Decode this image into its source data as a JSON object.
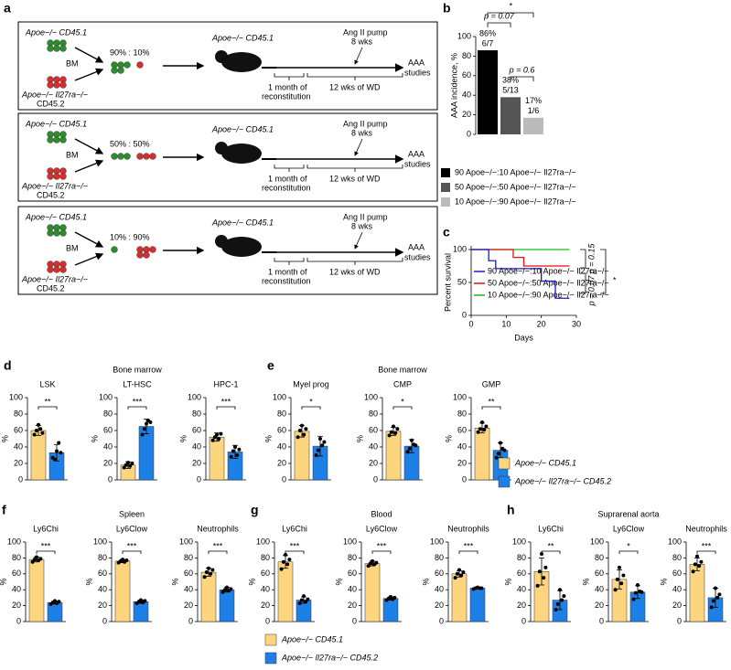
{
  "panel_a": {
    "label": "a",
    "rows": [
      {
        "donor1": "Apoe−/− CD45.1",
        "bm": "BM",
        "donor2": [
          "Apoe−/− Il27ra−/−",
          "CD45.2"
        ],
        "ratio": "90% : 10%",
        "recipient": "Apoe−/− CD45.1",
        "pump": "Ang II pump",
        "duration": "8 wks",
        "outcome": [
          "AAA",
          "studies"
        ],
        "phase1": [
          "1 month of",
          "reconstitution"
        ],
        "phase2": "12 wks of WD"
      },
      {
        "donor1": "Apoe−/− CD45.1",
        "bm": "BM",
        "donor2": [
          "Apoe−/− Il27ra−/−",
          "CD45.2"
        ],
        "ratio": "50% : 50%",
        "recipient": "Apoe−/− CD45.1",
        "pump": "Ang II pump",
        "duration": "8 wks",
        "outcome": [
          "AAA",
          "studies"
        ],
        "phase1": [
          "1 month of",
          "reconstitution"
        ],
        "phase2": "12 wks of WD"
      },
      {
        "donor1": "Apoe−/− CD45.1",
        "bm": "BM",
        "donor2": [
          "Apoe−/− Il27ra−/−",
          "CD45.2"
        ],
        "ratio": "10% : 90%",
        "recipient": "Apoe−/− CD45.1",
        "pump": "Ang II pump",
        "duration": "8 wks",
        "outcome": [
          "AAA",
          "studies"
        ],
        "phase1": [
          "1 month of",
          "reconstitution"
        ],
        "phase2": "12 wks of WD"
      }
    ]
  },
  "legend": {
    "series": [
      {
        "name": "Apoe−/− CD45.1",
        "color": "#fcd57e"
      },
      {
        "name": "Apoe−/− Il27ra−/− CD45.2",
        "color": "#1d80e6"
      }
    ]
  },
  "chart_data": [
    {
      "type": "bar",
      "panel": "b",
      "ylabel": "AAA incidence, %",
      "ylim": [
        0,
        100
      ],
      "yticks": [
        0,
        20,
        40,
        60,
        80,
        100
      ],
      "series": [
        {
          "name": "90 Apoe−/−:10 Apoe−/− Il27ra−/−",
          "color": "#000000",
          "values": [
            86
          ],
          "value_labels": [
            "86%"
          ],
          "counts": [
            "6/7"
          ]
        },
        {
          "name": "50 Apoe−/−:50 Apoe−/− Il27ra−/−",
          "color": "#555555",
          "values": [
            38
          ],
          "value_labels": [
            "38%"
          ],
          "counts": [
            "5/13"
          ]
        },
        {
          "name": "10 Apoe−/−:90 Apoe−/− Il27ra−/−",
          "color": "#bbbbbb",
          "values": [
            17
          ],
          "value_labels": [
            "17%"
          ],
          "counts": [
            "1/6"
          ]
        }
      ],
      "annotations": [
        "p = 0.07",
        "*",
        "p = 0.6"
      ]
    },
    {
      "type": "line",
      "panel": "c",
      "xlabel": "Days",
      "ylabel": "Percent survival",
      "xlim": [
        0,
        30
      ],
      "xticks": [
        0,
        10,
        20,
        30
      ],
      "ylim": [
        0,
        100
      ],
      "yticks": [
        0,
        50,
        100
      ],
      "series": [
        {
          "name": "90 Apoe−/−:10 Apoe−/− Il27ra−/−",
          "color": "#1a1ad0",
          "x": [
            0,
            5,
            7,
            20,
            24,
            28
          ],
          "values": [
            100,
            83,
            71,
            52,
            26,
            26
          ]
        },
        {
          "name": "50 Apoe−/−:50 Apoe−/− Il27ra−/−",
          "color": "#e01010",
          "x": [
            0,
            12,
            15,
            28
          ],
          "values": [
            100,
            88,
            75,
            75
          ]
        },
        {
          "name": "10 Apoe−/−:90 Apoe−/− Il27ra−/−",
          "color": "#10c010",
          "x": [
            0,
            28
          ],
          "values": [
            100,
            100
          ]
        }
      ],
      "annotations": [
        "p = 0.15",
        "p = 0.07",
        "*"
      ]
    },
    {
      "type": "bar",
      "panel": "d",
      "group": "Bone marrow",
      "title": "LSK",
      "ylabel": "%",
      "ylim": [
        0,
        100
      ],
      "yticks": [
        0,
        20,
        40,
        60,
        80,
        100
      ],
      "values": [
        60,
        33
      ],
      "errors": [
        6,
        10
      ],
      "points": [
        [
          55,
          60,
          67,
          62,
          57
        ],
        [
          27,
          25,
          35,
          45,
          33
        ]
      ],
      "significance": "**"
    },
    {
      "type": "bar",
      "title": "LT-HSC",
      "ylabel": "%",
      "ylim": [
        0,
        100
      ],
      "yticks": [
        0,
        20,
        40,
        60,
        80,
        100
      ],
      "values": [
        18,
        65
      ],
      "errors": [
        4,
        9
      ],
      "points": [
        [
          15,
          18,
          21,
          17,
          20
        ],
        [
          55,
          62,
          68,
          72,
          70
        ]
      ],
      "significance": "***"
    },
    {
      "type": "bar",
      "title": "HPC-1",
      "ylabel": "%",
      "ylim": [
        0,
        100
      ],
      "yticks": [
        0,
        20,
        40,
        60,
        80,
        100
      ],
      "values": [
        52,
        34
      ],
      "errors": [
        5,
        8
      ],
      "points": [
        [
          48,
          52,
          55,
          50,
          56
        ],
        [
          28,
          35,
          40,
          30,
          37
        ]
      ],
      "significance": "***"
    },
    {
      "type": "bar",
      "panel": "e",
      "group": "Bone marrow",
      "title": "Myel prog",
      "ylabel": "%",
      "ylim": [
        0,
        100
      ],
      "yticks": [
        0,
        20,
        40,
        60,
        80,
        100
      ],
      "values": [
        59,
        41
      ],
      "errors": [
        7,
        12
      ],
      "points": [
        [
          52,
          60,
          66,
          55,
          62
        ],
        [
          30,
          36,
          50,
          42,
          46
        ]
      ],
      "significance": "*"
    },
    {
      "type": "bar",
      "title": "CMP",
      "ylabel": "%",
      "ylim": [
        0,
        100
      ],
      "yticks": [
        0,
        20,
        40,
        60,
        80,
        100
      ],
      "values": [
        59,
        41
      ],
      "errors": [
        5,
        8
      ],
      "points": [
        [
          54,
          58,
          65,
          57,
          62
        ],
        [
          34,
          38,
          48,
          43,
          42
        ]
      ],
      "significance": "*"
    },
    {
      "type": "bar",
      "title": "GMP",
      "ylabel": "%",
      "ylim": [
        0,
        100
      ],
      "yticks": [
        0,
        20,
        40,
        60,
        80,
        100
      ],
      "values": [
        63,
        36
      ],
      "errors": [
        6,
        9
      ],
      "points": [
        [
          58,
          62,
          70,
          61,
          65
        ],
        [
          27,
          32,
          45,
          38,
          36
        ]
      ],
      "significance": "**"
    },
    {
      "type": "bar",
      "panel": "f",
      "group": "Spleen",
      "title": "Ly6Chi",
      "ylabel": "%",
      "ylim": [
        0,
        100
      ],
      "yticks": [
        0,
        20,
        40,
        60,
        80,
        100
      ],
      "values": [
        78,
        24
      ],
      "errors": [
        3,
        2
      ],
      "points": [
        [
          75,
          78,
          81,
          77,
          79
        ],
        [
          22,
          24,
          26,
          23,
          25
        ]
      ],
      "significance": "***"
    },
    {
      "type": "bar",
      "title": "Ly6Clow",
      "ylabel": "%",
      "ylim": [
        0,
        100
      ],
      "yticks": [
        0,
        20,
        40,
        60,
        80,
        100
      ],
      "values": [
        76,
        25
      ],
      "errors": [
        2,
        2
      ],
      "points": [
        [
          74,
          76,
          78,
          75,
          77
        ],
        [
          23,
          25,
          27,
          24,
          26
        ]
      ],
      "significance": "***"
    },
    {
      "type": "bar",
      "title": "Neutrophils",
      "ylabel": "%",
      "ylim": [
        0,
        100
      ],
      "yticks": [
        0,
        20,
        40,
        60,
        80,
        100
      ],
      "values": [
        62,
        40
      ],
      "errors": [
        5,
        3
      ],
      "points": [
        [
          56,
          62,
          67,
          60,
          65
        ],
        [
          37,
          40,
          43,
          39,
          41
        ]
      ],
      "significance": "***"
    },
    {
      "type": "bar",
      "panel": "g",
      "group": "Blood",
      "title": "Ly6Chi",
      "ylabel": "%",
      "ylim": [
        0,
        100
      ],
      "yticks": [
        0,
        20,
        40,
        60,
        80,
        100
      ],
      "values": [
        75,
        27
      ],
      "errors": [
        8,
        4
      ],
      "points": [
        [
          66,
          75,
          84,
          72,
          78
        ],
        [
          23,
          27,
          32,
          25,
          28
        ]
      ],
      "significance": "***"
    },
    {
      "type": "bar",
      "title": "Ly6Clow",
      "ylabel": "%",
      "ylim": [
        0,
        100
      ],
      "yticks": [
        0,
        20,
        40,
        60,
        80,
        100
      ],
      "values": [
        73,
        29
      ],
      "errors": [
        3,
        2
      ],
      "points": [
        [
          70,
          73,
          76,
          72,
          74
        ],
        [
          27,
          29,
          31,
          28,
          30
        ]
      ],
      "significance": "***"
    },
    {
      "type": "bar",
      "title": "Neutrophils",
      "ylabel": "%",
      "ylim": [
        0,
        100
      ],
      "yticks": [
        0,
        20,
        40,
        60,
        80,
        100
      ],
      "values": [
        60,
        42
      ],
      "errors": [
        4,
        1
      ],
      "points": [
        [
          55,
          60,
          65,
          58,
          62
        ],
        [
          41,
          42,
          43,
          42,
          42
        ]
      ],
      "significance": "***"
    },
    {
      "type": "bar",
      "panel": "h",
      "group": "Suprarenal aorta",
      "title": "Ly6Chi",
      "ylabel": "%",
      "ylim": [
        0,
        100
      ],
      "yticks": [
        0,
        20,
        40,
        60,
        80,
        100
      ],
      "values": [
        63,
        27
      ],
      "errors": [
        17,
        12
      ],
      "points": [
        [
          45,
          63,
          85,
          55,
          68
        ],
        [
          15,
          22,
          40,
          27,
          32
        ]
      ],
      "significance": "**"
    },
    {
      "type": "bar",
      "title": "Ly6Clow",
      "ylabel": "%",
      "ylim": [
        0,
        100
      ],
      "yticks": [
        0,
        20,
        40,
        60,
        80,
        100
      ],
      "values": [
        53,
        37
      ],
      "errors": [
        12,
        8
      ],
      "points": [
        [
          40,
          53,
          68,
          48,
          58
        ],
        [
          28,
          36,
          46,
          38,
          37
        ]
      ],
      "significance": "*"
    },
    {
      "type": "bar",
      "title": "Neutrophils",
      "ylabel": "%",
      "ylim": [
        0,
        100
      ],
      "yticks": [
        0,
        20,
        40,
        60,
        80,
        100
      ],
      "values": [
        72,
        30
      ],
      "errors": [
        8,
        12
      ],
      "points": [
        [
          63,
          72,
          82,
          70,
          75
        ],
        [
          18,
          26,
          42,
          30,
          34
        ]
      ],
      "significance": "***"
    }
  ]
}
